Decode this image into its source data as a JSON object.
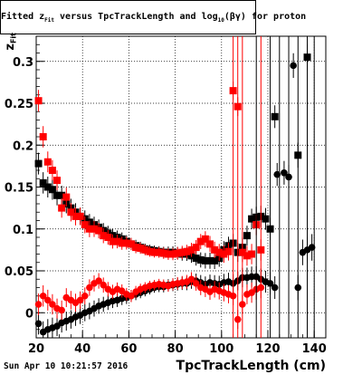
{
  "title": "Fitted  z_{Fit}  versus  TpcTrackLength and log_{10}(βγ) for proton",
  "title_display": "Fitted  z",
  "title_display2": "  versus  TpcTrackLength and log",
  "title_display3": "(βγ) for proton",
  "timestamp": "Sun Apr 10 10:21:57 2016",
  "chart_data": {
    "type": "scatter",
    "title": "Fitted z_Fit versus TpcTrackLength and log10(βγ) for proton",
    "xlabel": "TpcTrackLength (cm)",
    "ylabel": "z_Fit",
    "xlim": [
      20,
      145
    ],
    "ylim": [
      -0.03,
      0.33
    ],
    "x_ticks": [
      "20",
      "40",
      "60",
      "80",
      "100",
      "120",
      "140"
    ],
    "y_ticks": [
      "0",
      "0.05",
      "0.1",
      "0.15",
      "0.2",
      "0.25",
      "0.3"
    ],
    "grid": true,
    "series": [
      {
        "marker": "square",
        "color": "#000000",
        "points": [
          [
            21,
            0.178
          ],
          [
            23,
            0.155
          ],
          [
            25,
            0.15
          ],
          [
            27,
            0.147
          ],
          [
            29,
            0.14
          ],
          [
            31,
            0.14
          ],
          [
            33,
            0.13
          ],
          [
            35,
            0.125
          ],
          [
            37,
            0.12
          ],
          [
            39,
            0.115
          ],
          [
            41,
            0.112
          ],
          [
            43,
            0.108
          ],
          [
            45,
            0.105
          ],
          [
            47,
            0.102
          ],
          [
            49,
            0.098
          ],
          [
            51,
            0.095
          ],
          [
            53,
            0.092
          ],
          [
            55,
            0.09
          ],
          [
            57,
            0.088
          ],
          [
            59,
            0.085
          ],
          [
            61,
            0.082
          ],
          [
            63,
            0.08
          ],
          [
            65,
            0.078
          ],
          [
            67,
            0.076
          ],
          [
            69,
            0.075
          ],
          [
            71,
            0.074
          ],
          [
            73,
            0.073
          ],
          [
            75,
            0.072
          ],
          [
            77,
            0.072
          ],
          [
            79,
            0.072
          ],
          [
            81,
            0.071
          ],
          [
            83,
            0.07
          ],
          [
            85,
            0.07
          ],
          [
            87,
            0.068
          ],
          [
            89,
            0.065
          ],
          [
            91,
            0.063
          ],
          [
            93,
            0.062
          ],
          [
            95,
            0.062
          ],
          [
            97,
            0.062
          ],
          [
            99,
            0.065
          ],
          [
            101,
            0.075
          ],
          [
            103,
            0.08
          ],
          [
            105,
            0.083
          ],
          [
            107,
            0.072
          ],
          [
            109,
            0.078
          ],
          [
            111,
            0.092
          ],
          [
            113,
            0.112
          ],
          [
            115,
            0.114
          ],
          [
            117,
            0.115
          ],
          [
            119,
            0.112
          ],
          [
            121,
            0.1
          ],
          [
            123,
            0.234
          ],
          [
            133,
            0.188
          ],
          [
            137,
            0.305
          ]
        ]
      },
      {
        "marker": "square",
        "color": "#ff0000",
        "points": [
          [
            21,
            0.253
          ],
          [
            23,
            0.21
          ],
          [
            25,
            0.18
          ],
          [
            27,
            0.17
          ],
          [
            29,
            0.158
          ],
          [
            31,
            0.125
          ],
          [
            33,
            0.138
          ],
          [
            35,
            0.12
          ],
          [
            37,
            0.115
          ],
          [
            39,
            0.115
          ],
          [
            41,
            0.105
          ],
          [
            43,
            0.1
          ],
          [
            45,
            0.1
          ],
          [
            47,
            0.098
          ],
          [
            49,
            0.092
          ],
          [
            51,
            0.09
          ],
          [
            53,
            0.085
          ],
          [
            55,
            0.085
          ],
          [
            57,
            0.083
          ],
          [
            59,
            0.083
          ],
          [
            61,
            0.082
          ],
          [
            63,
            0.078
          ],
          [
            65,
            0.077
          ],
          [
            67,
            0.075
          ],
          [
            69,
            0.073
          ],
          [
            71,
            0.072
          ],
          [
            73,
            0.072
          ],
          [
            75,
            0.071
          ],
          [
            77,
            0.07
          ],
          [
            79,
            0.07
          ],
          [
            81,
            0.071
          ],
          [
            83,
            0.072
          ],
          [
            85,
            0.073
          ],
          [
            87,
            0.075
          ],
          [
            89,
            0.078
          ],
          [
            91,
            0.085
          ],
          [
            93,
            0.088
          ],
          [
            95,
            0.082
          ],
          [
            97,
            0.075
          ],
          [
            99,
            0.072
          ],
          [
            101,
            0.07
          ],
          [
            103,
            0.073
          ],
          [
            105,
            0.265
          ],
          [
            107,
            0.246
          ],
          [
            109,
            0.072
          ],
          [
            111,
            0.068
          ],
          [
            113,
            0.07
          ],
          [
            115,
            0.105
          ],
          [
            117,
            0.075
          ]
        ]
      },
      {
        "marker": "circle",
        "color": "#000000",
        "points": [
          [
            21,
            -0.013
          ],
          [
            23,
            -0.023
          ],
          [
            25,
            -0.02
          ],
          [
            27,
            -0.018
          ],
          [
            29,
            -0.016
          ],
          [
            31,
            -0.012
          ],
          [
            33,
            -0.01
          ],
          [
            35,
            -0.008
          ],
          [
            37,
            -0.005
          ],
          [
            39,
            -0.003
          ],
          [
            41,
            0.0
          ],
          [
            43,
            0.002
          ],
          [
            45,
            0.005
          ],
          [
            47,
            0.008
          ],
          [
            49,
            0.01
          ],
          [
            51,
            0.012
          ],
          [
            53,
            0.014
          ],
          [
            55,
            0.015
          ],
          [
            57,
            0.017
          ],
          [
            59,
            0.018
          ],
          [
            61,
            0.02
          ],
          [
            63,
            0.022
          ],
          [
            65,
            0.024
          ],
          [
            67,
            0.026
          ],
          [
            69,
            0.028
          ],
          [
            71,
            0.03
          ],
          [
            73,
            0.031
          ],
          [
            75,
            0.031
          ],
          [
            77,
            0.033
          ],
          [
            79,
            0.033
          ],
          [
            81,
            0.034
          ],
          [
            83,
            0.035
          ],
          [
            85,
            0.035
          ],
          [
            87,
            0.037
          ],
          [
            89,
            0.038
          ],
          [
            91,
            0.036
          ],
          [
            93,
            0.034
          ],
          [
            95,
            0.036
          ],
          [
            97,
            0.035
          ],
          [
            99,
            0.034
          ],
          [
            101,
            0.036
          ],
          [
            103,
            0.037
          ],
          [
            105,
            0.035
          ],
          [
            107,
            0.038
          ],
          [
            109,
            0.042
          ],
          [
            111,
            0.042
          ],
          [
            113,
            0.043
          ],
          [
            115,
            0.043
          ],
          [
            117,
            0.04
          ],
          [
            119,
            0.037
          ],
          [
            121,
            0.035
          ],
          [
            123,
            0.03
          ],
          [
            124,
            0.165
          ],
          [
            127,
            0.167
          ],
          [
            129,
            0.162
          ],
          [
            131,
            0.295
          ],
          [
            133,
            0.03
          ],
          [
            135,
            0.072
          ],
          [
            137,
            0.075
          ],
          [
            139,
            0.078
          ]
        ]
      },
      {
        "marker": "circle",
        "color": "#ff0000",
        "points": [
          [
            21,
            0.01
          ],
          [
            23,
            0.02
          ],
          [
            25,
            0.015
          ],
          [
            27,
            0.01
          ],
          [
            29,
            0.005
          ],
          [
            31,
            0.003
          ],
          [
            33,
            0.018
          ],
          [
            35,
            0.015
          ],
          [
            37,
            0.012
          ],
          [
            39,
            0.015
          ],
          [
            41,
            0.02
          ],
          [
            43,
            0.03
          ],
          [
            45,
            0.035
          ],
          [
            47,
            0.038
          ],
          [
            49,
            0.033
          ],
          [
            51,
            0.028
          ],
          [
            53,
            0.025
          ],
          [
            55,
            0.028
          ],
          [
            57,
            0.026
          ],
          [
            59,
            0.022
          ],
          [
            61,
            0.02
          ],
          [
            63,
            0.025
          ],
          [
            65,
            0.028
          ],
          [
            67,
            0.03
          ],
          [
            69,
            0.032
          ],
          [
            71,
            0.033
          ],
          [
            73,
            0.034
          ],
          [
            75,
            0.033
          ],
          [
            77,
            0.032
          ],
          [
            79,
            0.034
          ],
          [
            81,
            0.035
          ],
          [
            83,
            0.036
          ],
          [
            85,
            0.037
          ],
          [
            87,
            0.04
          ],
          [
            89,
            0.035
          ],
          [
            91,
            0.03
          ],
          [
            93,
            0.028
          ],
          [
            95,
            0.025
          ],
          [
            97,
            0.028
          ],
          [
            99,
            0.026
          ],
          [
            101,
            0.024
          ],
          [
            103,
            0.022
          ],
          [
            105,
            0.02
          ],
          [
            107,
            -0.008
          ],
          [
            109,
            0.01
          ],
          [
            111,
            0.022
          ],
          [
            113,
            0.024
          ],
          [
            115,
            0.028
          ],
          [
            117,
            0.03
          ]
        ]
      }
    ]
  }
}
